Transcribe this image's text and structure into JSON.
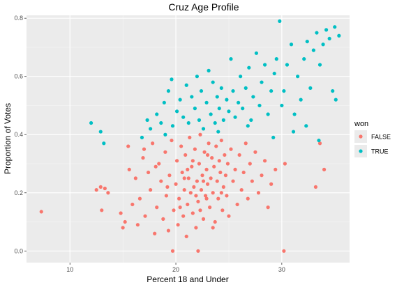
{
  "chart_data": {
    "type": "scatter",
    "title": "Cruz Age Profile",
    "xlabel": "Percent 18 and Under",
    "ylabel": "Proportion of Votes",
    "xlim": [
      5.9,
      36.4
    ],
    "ylim": [
      -0.04,
      0.81
    ],
    "x_ticks": [
      10,
      20,
      30
    ],
    "y_ticks": [
      0.0,
      0.2,
      0.4,
      0.6,
      0.8
    ],
    "x_tick_labels": [
      "10",
      "20",
      "30"
    ],
    "y_tick_labels": [
      "0.0",
      "0.2",
      "0.4",
      "0.6",
      "0.8"
    ],
    "grid": true,
    "legend": {
      "title": "won",
      "position": "right",
      "entries": [
        {
          "label": "FALSE",
          "color": "#F8766D"
        },
        {
          "label": "TRUE",
          "color": "#00BFC4"
        }
      ]
    },
    "series": [
      {
        "name": "FALSE",
        "color": "#F8766D",
        "points": [
          [
            7.3,
            0.135
          ],
          [
            12.5,
            0.21
          ],
          [
            12.9,
            0.22
          ],
          [
            13.0,
            0.14
          ],
          [
            13.3,
            0.215
          ],
          [
            13.6,
            0.2
          ],
          [
            14.8,
            0.13
          ],
          [
            15.0,
            0.08
          ],
          [
            15.2,
            0.1
          ],
          [
            15.6,
            0.28
          ],
          [
            15.5,
            0.36
          ],
          [
            15.9,
            0.16
          ],
          [
            16.2,
            0.25
          ],
          [
            16.4,
            0.09
          ],
          [
            16.6,
            0.18
          ],
          [
            16.9,
            0.32
          ],
          [
            17.1,
            0.12
          ],
          [
            17.4,
            0.27
          ],
          [
            17.6,
            0.21
          ],
          [
            17.8,
            0.37
          ],
          [
            18.0,
            0.06
          ],
          [
            18.2,
            0.15
          ],
          [
            18.4,
            0.3
          ],
          [
            18.6,
            0.24
          ],
          [
            18.8,
            0.11
          ],
          [
            19.0,
            0.34
          ],
          [
            19.1,
            0.19
          ],
          [
            19.3,
            0.07
          ],
          [
            19.4,
            0.26
          ],
          [
            19.6,
            0.38
          ],
          [
            19.7,
            0.0
          ],
          [
            19.8,
            0.14
          ],
          [
            20.0,
            0.23
          ],
          [
            20.1,
            0.31
          ],
          [
            20.2,
            0.09
          ],
          [
            20.3,
            0.18
          ],
          [
            20.5,
            0.36
          ],
          [
            20.6,
            0.27
          ],
          [
            20.7,
            0.12
          ],
          [
            20.8,
            0.21
          ],
          [
            20.9,
            0.33
          ],
          [
            21.0,
            0.05
          ],
          [
            21.1,
            0.16
          ],
          [
            21.2,
            0.25
          ],
          [
            21.3,
            0.39
          ],
          [
            21.4,
            0.2
          ],
          [
            21.5,
            0.29
          ],
          [
            21.6,
            0.13
          ],
          [
            21.7,
            0.22
          ],
          [
            21.8,
            0.35
          ],
          [
            21.9,
            0.08
          ],
          [
            22.0,
            0.24
          ],
          [
            22.1,
            0.17
          ],
          [
            22.2,
            0.3
          ],
          [
            22.3,
            0.4
          ],
          [
            22.4,
            0.21
          ],
          [
            22.5,
            0.26
          ],
          [
            22.6,
            0.11
          ],
          [
            22.7,
            0.34
          ],
          [
            22.8,
            0.19
          ],
          [
            22.9,
            0.28
          ],
          [
            23.0,
            0.23
          ],
          [
            23.1,
            0.37
          ],
          [
            23.2,
            0.15
          ],
          [
            23.3,
            0.25
          ],
          [
            23.4,
            0.32
          ],
          [
            23.5,
            0.2
          ],
          [
            23.6,
            0.29
          ],
          [
            23.7,
            0.1
          ],
          [
            23.8,
            0.36
          ],
          [
            23.9,
            0.24
          ],
          [
            24.0,
            0.18
          ],
          [
            24.1,
            0.31
          ],
          [
            24.2,
            0.27
          ],
          [
            24.3,
            0.38
          ],
          [
            24.4,
            0.14
          ],
          [
            24.5,
            0.22
          ],
          [
            24.6,
            0.33
          ],
          [
            24.7,
            0.26
          ],
          [
            24.8,
            0.19
          ],
          [
            24.9,
            0.3
          ],
          [
            25.0,
            0.12
          ],
          [
            25.2,
            0.35
          ],
          [
            25.4,
            0.24
          ],
          [
            25.6,
            0.28
          ],
          [
            25.8,
            0.16
          ],
          [
            26.0,
            0.33
          ],
          [
            26.2,
            0.21
          ],
          [
            26.4,
            0.27
          ],
          [
            26.6,
            0.37
          ],
          [
            26.8,
            0.18
          ],
          [
            27.0,
            0.3
          ],
          [
            27.2,
            0.24
          ],
          [
            27.5,
            0.34
          ],
          [
            27.8,
            0.2
          ],
          [
            28.1,
            0.26
          ],
          [
            28.4,
            0.31
          ],
          [
            28.7,
            0.15
          ],
          [
            29.0,
            0.23
          ],
          [
            29.4,
            0.28
          ],
          [
            30.3,
            0.3
          ],
          [
            30.2,
            0.0
          ],
          [
            33.2,
            0.22
          ],
          [
            33.6,
            0.37
          ],
          [
            34.0,
            0.28
          ],
          [
            22.1,
            0.0
          ],
          [
            17.0,
            0.35
          ],
          [
            18.1,
            0.29
          ],
          [
            19.2,
            0.22
          ],
          [
            20.4,
            0.15
          ],
          [
            21.1,
            0.28
          ],
          [
            22.3,
            0.14
          ],
          [
            23.5,
            0.08
          ],
          [
            21.6,
            0.31
          ],
          [
            20.8,
            0.25
          ],
          [
            22.9,
            0.18
          ],
          [
            24.3,
            0.2
          ],
          [
            23.0,
            0.33
          ],
          [
            21.9,
            0.19
          ],
          [
            22.6,
            0.24
          ]
        ]
      },
      {
        "name": "TRUE",
        "color": "#00BFC4",
        "points": [
          [
            12.0,
            0.44
          ],
          [
            12.9,
            0.41
          ],
          [
            13.2,
            0.37
          ],
          [
            16.8,
            0.39
          ],
          [
            17.3,
            0.45
          ],
          [
            17.6,
            0.42
          ],
          [
            18.2,
            0.47
          ],
          [
            18.6,
            0.44
          ],
          [
            18.9,
            0.51
          ],
          [
            19.0,
            0.4
          ],
          [
            19.3,
            0.55
          ],
          [
            19.6,
            0.59
          ],
          [
            19.7,
            0.43
          ],
          [
            20.1,
            0.48
          ],
          [
            20.4,
            0.52
          ],
          [
            20.7,
            0.46
          ],
          [
            21.0,
            0.57
          ],
          [
            21.2,
            0.44
          ],
          [
            21.5,
            0.53
          ],
          [
            21.8,
            0.49
          ],
          [
            22.0,
            0.6
          ],
          [
            22.2,
            0.45
          ],
          [
            22.4,
            0.55
          ],
          [
            22.6,
            0.42
          ],
          [
            22.9,
            0.51
          ],
          [
            23.1,
            0.62
          ],
          [
            23.3,
            0.47
          ],
          [
            23.5,
            0.58
          ],
          [
            23.7,
            0.44
          ],
          [
            23.9,
            0.53
          ],
          [
            24.1,
            0.49
          ],
          [
            24.3,
            0.56
          ],
          [
            24.5,
            0.45
          ],
          [
            24.8,
            0.52
          ],
          [
            25.0,
            0.48
          ],
          [
            25.2,
            0.66
          ],
          [
            25.4,
            0.55
          ],
          [
            25.6,
            0.46
          ],
          [
            25.9,
            0.51
          ],
          [
            26.1,
            0.6
          ],
          [
            26.3,
            0.49
          ],
          [
            26.6,
            0.56
          ],
          [
            26.9,
            0.63
          ],
          [
            27.1,
            0.45
          ],
          [
            27.3,
            0.53
          ],
          [
            27.6,
            0.68
          ],
          [
            27.9,
            0.5
          ],
          [
            28.1,
            0.58
          ],
          [
            28.4,
            0.64
          ],
          [
            28.7,
            0.47
          ],
          [
            29.0,
            0.55
          ],
          [
            29.3,
            0.61
          ],
          [
            29.5,
            0.66
          ],
          [
            29.8,
            0.79
          ],
          [
            30.0,
            0.5
          ],
          [
            30.2,
            0.55
          ],
          [
            30.5,
            0.64
          ],
          [
            30.9,
            0.71
          ],
          [
            31.2,
            0.47
          ],
          [
            31.5,
            0.6
          ],
          [
            31.8,
            0.52
          ],
          [
            32.1,
            0.66
          ],
          [
            32.4,
            0.72
          ],
          [
            32.7,
            0.56
          ],
          [
            33.0,
            0.69
          ],
          [
            33.3,
            0.75
          ],
          [
            33.6,
            0.64
          ],
          [
            33.9,
            0.71
          ],
          [
            34.2,
            0.76
          ],
          [
            34.5,
            0.73
          ],
          [
            34.8,
            0.55
          ],
          [
            35.0,
            0.77
          ],
          [
            35.1,
            0.52
          ],
          [
            35.4,
            0.74
          ],
          [
            31.1,
            0.41
          ],
          [
            32.3,
            0.43
          ],
          [
            33.5,
            0.38
          ],
          [
            29.2,
            0.39
          ],
          [
            26.8,
            0.43
          ],
          [
            24.0,
            0.41
          ]
        ]
      }
    ]
  }
}
